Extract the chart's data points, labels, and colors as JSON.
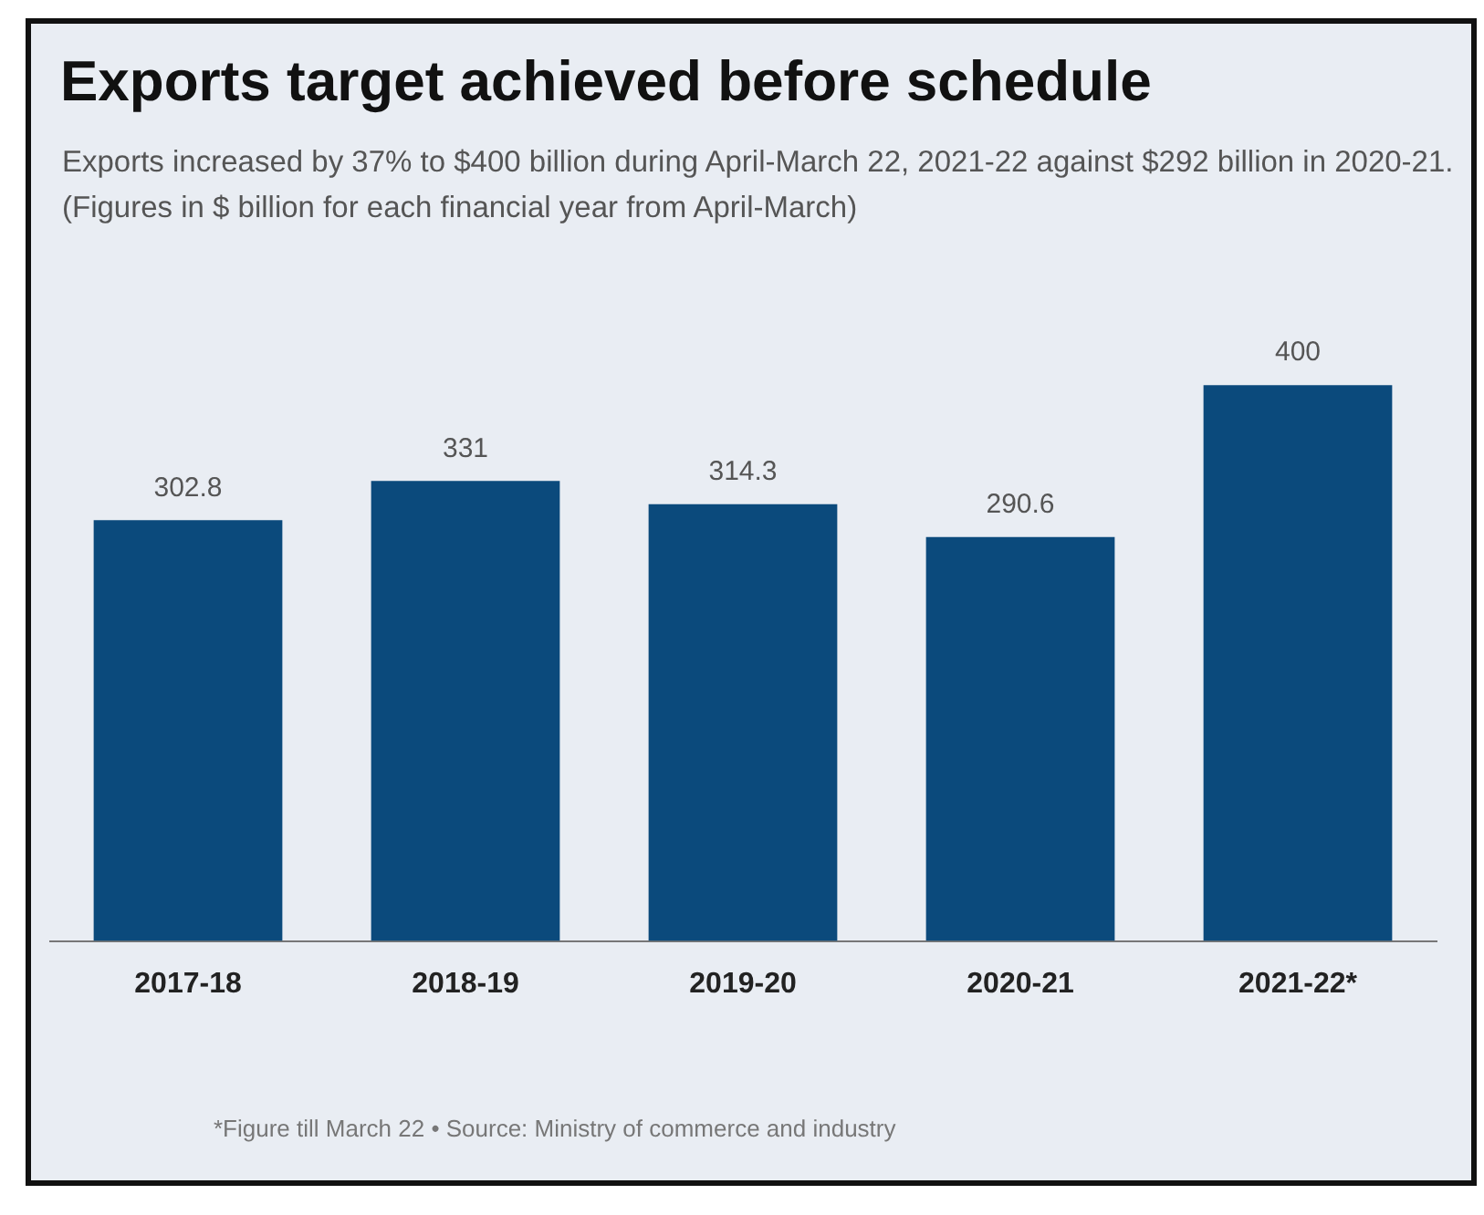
{
  "chart_data": {
    "type": "bar",
    "title": "Exports target achieved before schedule",
    "subtitle": "Exports increased by 37% to $400 billion during April-March 22, 2021-22 against $292 billion in 2020-21. (Figures in $ billion for each financial year from April-March)",
    "categories": [
      "2017-18",
      "2018-19",
      "2019-20",
      "2020-21",
      "2021-22*"
    ],
    "values": [
      302.8,
      331,
      314.3,
      290.6,
      400
    ],
    "color": "#0b4a7c",
    "data_labels": true,
    "grid": false,
    "legend": false,
    "annotations": [
      "*Figure till March 22 • Source: Ministry of commerce and industry"
    ]
  }
}
